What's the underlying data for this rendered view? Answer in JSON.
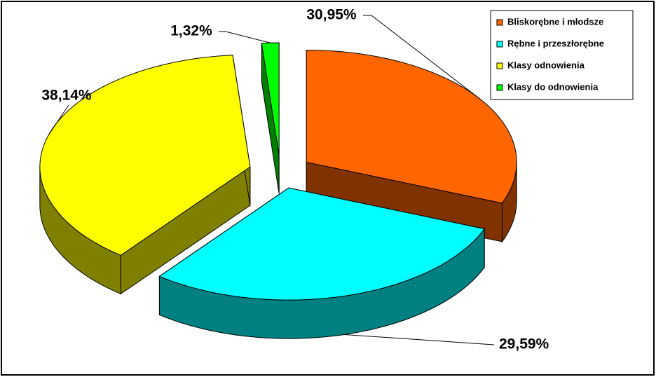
{
  "chart_data": {
    "type": "pie",
    "categories": [
      "Bliskorębne i młodsze",
      "Rębne i przeszłorębne",
      "Klasy odnowienia",
      "Klasy do odnowienia"
    ],
    "values": [
      30.95,
      29.59,
      38.14,
      1.32
    ],
    "value_labels": [
      "30,95%",
      "29,59%",
      "38,14%",
      "1,32%"
    ],
    "colors": [
      "#ff6600",
      "#00ffff",
      "#ffff00",
      "#00ff00"
    ],
    "side_colors": [
      "#803300",
      "#008080",
      "#808000",
      "#008000"
    ],
    "legend": "top-right"
  }
}
